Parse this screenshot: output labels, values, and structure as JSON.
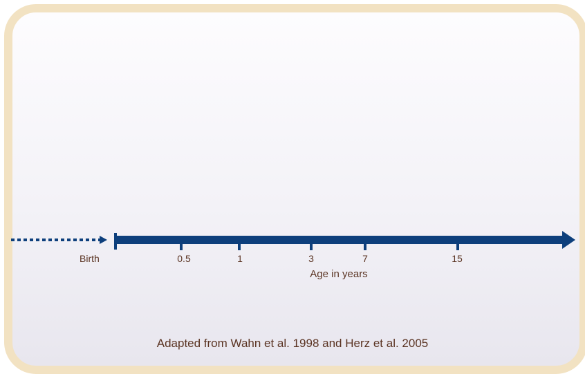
{
  "timeline": {
    "birth_label": "Birth",
    "ticks": [
      {
        "label": "0.5",
        "age": 0.5
      },
      {
        "label": "1",
        "age": 1
      },
      {
        "label": "3",
        "age": 3
      },
      {
        "label": "7",
        "age": 7
      },
      {
        "label": "15",
        "age": 15
      }
    ],
    "axis_title": "Age in years"
  },
  "citation": "Adapted from Wahn et al. 1998 and Herz et al. 2005",
  "colors": {
    "arrow": "#0d3f7c",
    "text": "#5a3322",
    "frame_border": "#f2e2c2"
  }
}
